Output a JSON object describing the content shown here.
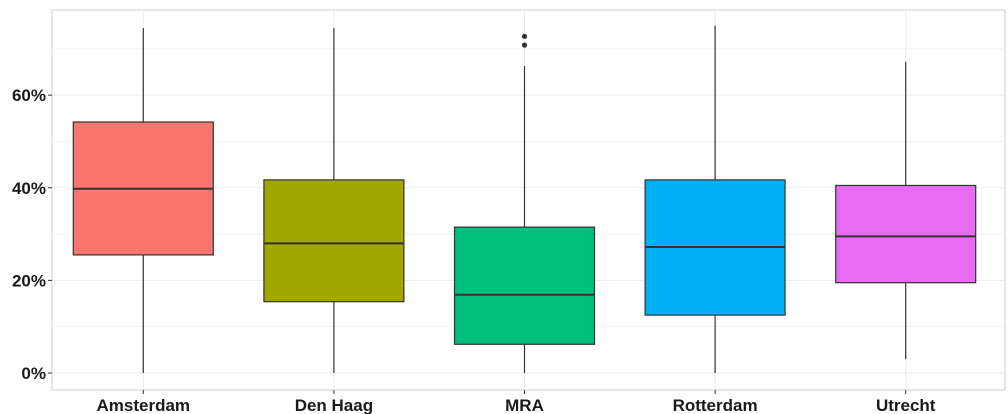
{
  "chart_data": {
    "type": "box",
    "title": "",
    "xlabel": "",
    "ylabel": "",
    "ylim": [
      0,
      0.77
    ],
    "y_ticks": [
      0,
      0.2,
      0.4,
      0.6
    ],
    "y_tick_labels": [
      "0%",
      "20%",
      "40%",
      "60%"
    ],
    "grid": true,
    "categories": [
      "Amsterdam",
      "Den Haag",
      "MRA",
      "Rotterdam",
      "Utrecht"
    ],
    "boxes": [
      {
        "category": "Amsterdam",
        "min": 0.0,
        "q1": 0.255,
        "median": 0.398,
        "q3": 0.542,
        "max": 0.745,
        "outliers": [],
        "color": "#F8766D"
      },
      {
        "category": "Den Haag",
        "min": 0.0,
        "q1": 0.154,
        "median": 0.28,
        "q3": 0.417,
        "max": 0.745,
        "outliers": [],
        "color": "#A3A500"
      },
      {
        "category": "MRA",
        "min": 0.0,
        "q1": 0.062,
        "median": 0.169,
        "q3": 0.315,
        "max": 0.663,
        "outliers": [
          0.708,
          0.727
        ],
        "color": "#00BF7D"
      },
      {
        "category": "Rotterdam",
        "min": 0.0,
        "q1": 0.125,
        "median": 0.272,
        "q3": 0.417,
        "max": 0.75,
        "outliers": [],
        "color": "#00B0F6"
      },
      {
        "category": "Utrecht",
        "min": 0.03,
        "q1": 0.195,
        "median": 0.295,
        "q3": 0.405,
        "max": 0.672,
        "outliers": [],
        "color": "#E76BF3"
      }
    ]
  }
}
